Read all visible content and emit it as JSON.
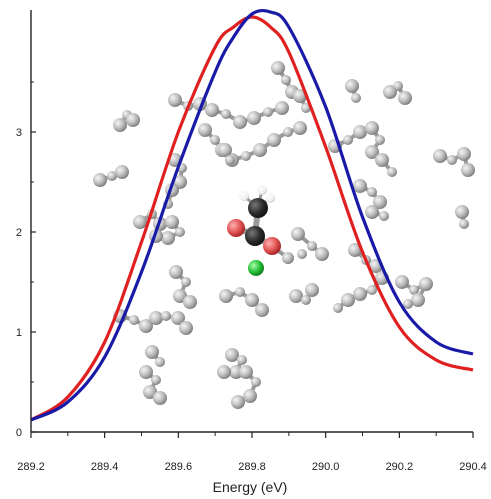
{
  "chart_data": {
    "type": "line",
    "title": "",
    "xlabel": "Energy (eV)",
    "ylabel": "",
    "xlim": [
      289.2,
      290.4
    ],
    "ylim": [
      0,
      4.0
    ],
    "xticks": [
      289.2,
      289.4,
      289.6,
      289.8,
      290.0,
      290.2,
      290.4
    ],
    "xtick_labels": [
      "289.2",
      "289.4",
      "289.6",
      "289.8",
      "290.0",
      "290.2",
      "290.4"
    ],
    "yticks": [
      0,
      1,
      2,
      3
    ],
    "ytick_labels": [
      "0",
      "1",
      "2",
      "3"
    ],
    "grid": false,
    "legend": "none",
    "series": [
      {
        "color": "#e02020",
        "x": [
          289.2,
          289.3,
          289.4,
          289.5,
          289.6,
          289.7,
          289.75,
          289.8,
          289.85,
          289.9,
          290.0,
          290.1,
          290.2,
          290.3,
          290.4
        ],
        "y": [
          0.12,
          0.35,
          0.9,
          1.9,
          3.0,
          3.85,
          4.05,
          4.15,
          4.05,
          3.8,
          2.85,
          1.8,
          1.05,
          0.72,
          0.62
        ]
      },
      {
        "color": "#1a1aa8",
        "x": [
          289.2,
          289.3,
          289.4,
          289.5,
          289.6,
          289.7,
          289.75,
          289.8,
          289.85,
          289.9,
          290.0,
          290.1,
          290.2,
          290.3,
          290.4
        ],
        "y": [
          0.12,
          0.3,
          0.75,
          1.6,
          2.65,
          3.6,
          3.95,
          4.18,
          4.2,
          4.05,
          3.25,
          2.15,
          1.3,
          0.9,
          0.78
        ]
      }
    ]
  },
  "inset": {
    "description_icon": "molecular-cluster-icon",
    "atom_colors": {
      "carbon_gray": "#b9b9b9",
      "carbon_dark": "#2a2a2a",
      "oxygen": "#e05050",
      "chlorine": "#22bb33",
      "hydrogen": "#f4f4f4"
    }
  }
}
